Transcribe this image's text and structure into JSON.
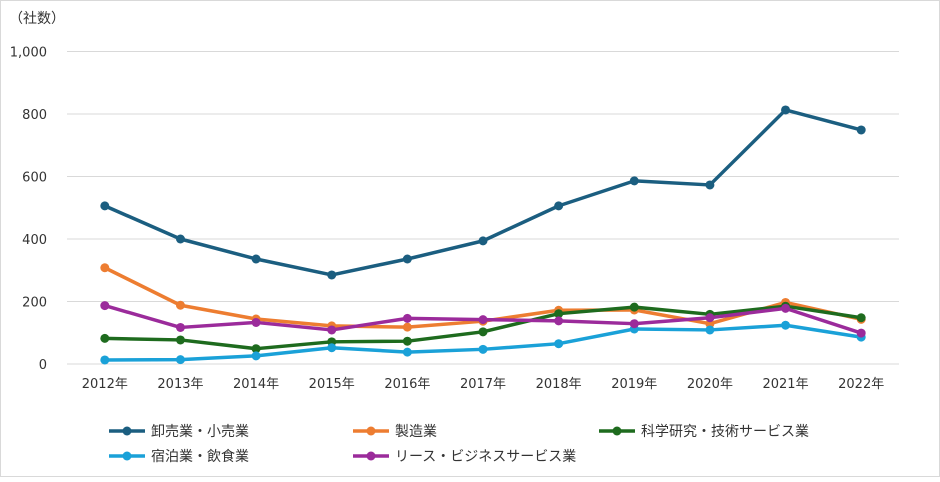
{
  "chart_data": {
    "type": "line",
    "unit_label": "（社数）",
    "categories": [
      "2012年",
      "2013年",
      "2014年",
      "2015年",
      "2016年",
      "2017年",
      "2018年",
      "2019年",
      "2020年",
      "2021年",
      "2022年"
    ],
    "ylim": [
      0,
      1000
    ],
    "yticks": [
      0,
      200,
      400,
      600,
      800,
      1000
    ],
    "ytick_labels": [
      "0",
      "200",
      "400",
      "600",
      "800",
      "1,000"
    ],
    "grid": true,
    "legend_placement": "bottom",
    "series": [
      {
        "name": "卸売業・小売業",
        "color": "#1b5e80",
        "values": [
          506,
          400,
          336,
          285,
          336,
          394,
          506,
          586,
          573,
          813,
          749
        ]
      },
      {
        "name": "製造業",
        "color": "#ed7d31",
        "values": [
          308,
          188,
          144,
          122,
          118,
          137,
          172,
          173,
          129,
          197,
          143
        ]
      },
      {
        "name": "科学研究・技術サービス業",
        "color": "#1e6b1e",
        "values": [
          82,
          77,
          49,
          71,
          73,
          103,
          161,
          182,
          159,
          185,
          148
        ]
      },
      {
        "name": "宿泊業・飲食業",
        "color": "#1aa1d8",
        "values": [
          13,
          14,
          26,
          52,
          38,
          47,
          65,
          112,
          109,
          124,
          86
        ]
      },
      {
        "name": "リース・ビジネスサービス業",
        "color": "#9b2b9b",
        "values": [
          187,
          117,
          133,
          109,
          146,
          142,
          138,
          129,
          148,
          178,
          99
        ]
      }
    ]
  }
}
